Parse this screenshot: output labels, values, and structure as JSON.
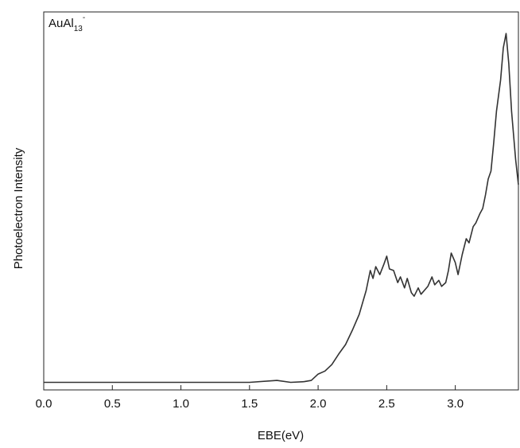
{
  "chart_data": {
    "type": "line",
    "annotation": {
      "text": "AuAl",
      "subscript": "13",
      "superscript": "-"
    },
    "x_label": "EBE(eV)",
    "y_label": "Photoelectron Intensity",
    "x": [
      0,
      0.5,
      1.0,
      1.5,
      1.7,
      1.8,
      1.9,
      1.95,
      2.0,
      2.05,
      2.1,
      2.15,
      2.2,
      2.25,
      2.3,
      2.35,
      2.38,
      2.4,
      2.42,
      2.45,
      2.48,
      2.5,
      2.52,
      2.55,
      2.58,
      2.6,
      2.63,
      2.65,
      2.68,
      2.7,
      2.73,
      2.75,
      2.8,
      2.83,
      2.85,
      2.88,
      2.9,
      2.93,
      2.95,
      2.97,
      3.0,
      3.02,
      3.05,
      3.08,
      3.1,
      3.13,
      3.15,
      3.18,
      3.2,
      3.22,
      3.24,
      3.26,
      3.28,
      3.3,
      3.33,
      3.35,
      3.37,
      3.39,
      3.41,
      3.44,
      3.46
    ],
    "series": [
      {
        "name": "AuAl13-",
        "color": "#333333",
        "values": [
          2,
          2,
          2,
          2,
          2.5,
          2,
          2.2,
          2.5,
          4.2,
          5,
          6.7,
          9.5,
          12,
          15.8,
          20,
          26.3,
          31.6,
          29.5,
          32.6,
          30.5,
          33.3,
          35.4,
          32,
          31.6,
          28.4,
          29.9,
          27,
          29.5,
          25.7,
          24.8,
          27,
          25.3,
          27.4,
          29.9,
          27.8,
          29,
          27.4,
          28.4,
          31.6,
          36.2,
          33.7,
          30.5,
          35.8,
          40,
          38.9,
          43.2,
          44.2,
          46.7,
          48,
          51.6,
          55.8,
          57.9,
          65.3,
          73.7,
          82,
          90.5,
          94.3,
          86.3,
          73.7,
          61,
          54.3
        ]
      }
    ],
    "xlim": [
      0,
      3.46
    ],
    "ylim": [
      0,
      100
    ],
    "xticks": [
      {
        "value": 0,
        "label": "0.0"
      },
      0.5,
      {
        "value": 1,
        "label": "1.0"
      },
      1.5,
      {
        "value": 2,
        "label": "2.0"
      },
      2.5,
      {
        "value": 3,
        "label": "3.0"
      }
    ],
    "grid": false
  }
}
